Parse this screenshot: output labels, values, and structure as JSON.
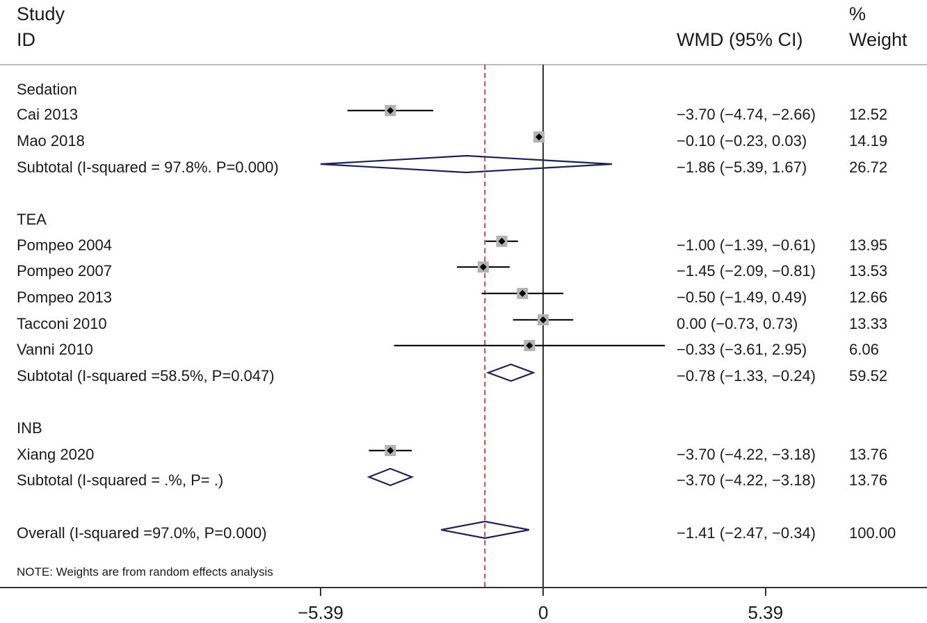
{
  "header": {
    "study_line1": "Study",
    "study_line2": "ID",
    "effect": "WMD (95% CI)",
    "weight_line1": "%",
    "weight_line2": "Weight"
  },
  "note": "NOTE: Weights are from random effects analysis",
  "chart_data": {
    "type": "forest",
    "effect_measure": "WMD (95% CI)",
    "x_ticks": [
      {
        "value": -5.39,
        "label": "−5.39"
      },
      {
        "value": 0,
        "label": "0"
      },
      {
        "value": 5.39,
        "label": "5.39"
      }
    ],
    "xlim": [
      -5.39,
      5.39
    ],
    "null_line": 0,
    "overall_line": -1.41,
    "rows": [
      {
        "kind": "group",
        "label": "Sedation"
      },
      {
        "kind": "study",
        "label": "Cai 2013",
        "est": -3.7,
        "lo": -4.74,
        "hi": -2.66,
        "ci_text": "−3.70 (−4.74, −2.66)",
        "weight": "12.52"
      },
      {
        "kind": "study",
        "label": "Mao 2018",
        "est": -0.1,
        "lo": -0.23,
        "hi": 0.03,
        "ci_text": "−0.10 (−0.23, 0.03)",
        "weight": "14.19"
      },
      {
        "kind": "subtotal",
        "label": "Subtotal (I-squared = 97.8%. P=0.000)",
        "est": -1.86,
        "lo": -5.39,
        "hi": 1.67,
        "ci_text": "−1.86 (−5.39, 1.67)",
        "weight": "26.72"
      },
      {
        "kind": "group",
        "label": "TEA"
      },
      {
        "kind": "study",
        "label": "Pompeo 2004",
        "est": -1.0,
        "lo": -1.39,
        "hi": -0.61,
        "ci_text": "−1.00 (−1.39, −0.61)",
        "weight": "13.95"
      },
      {
        "kind": "study",
        "label": "Pompeo 2007",
        "est": -1.45,
        "lo": -2.09,
        "hi": -0.81,
        "ci_text": "−1.45 (−2.09, −0.81)",
        "weight": "13.53"
      },
      {
        "kind": "study",
        "label": "Pompeo 2013",
        "est": -0.5,
        "lo": -1.49,
        "hi": 0.49,
        "ci_text": "−0.50 (−1.49, 0.49)",
        "weight": "12.66"
      },
      {
        "kind": "study",
        "label": "Tacconi 2010",
        "est": 0.0,
        "lo": -0.73,
        "hi": 0.73,
        "ci_text": "0.00 (−0.73, 0.73)",
        "weight": "13.33"
      },
      {
        "kind": "study",
        "label": "Vanni 2010",
        "est": -0.33,
        "lo": -3.61,
        "hi": 2.95,
        "ci_text": "−0.33 (−3.61, 2.95)",
        "weight": "6.06"
      },
      {
        "kind": "subtotal",
        "label": "Subtotal (I-squared =58.5%, P=0.047)",
        "est": -0.78,
        "lo": -1.33,
        "hi": -0.24,
        "ci_text": "−0.78 (−1.33, −0.24)",
        "weight": "59.52"
      },
      {
        "kind": "group",
        "label": "INB"
      },
      {
        "kind": "study",
        "label": "Xiang 2020",
        "est": -3.7,
        "lo": -4.22,
        "hi": -3.18,
        "ci_text": "−3.70 (−4.22, −3.18)",
        "weight": "13.76"
      },
      {
        "kind": "subtotal",
        "label": "Subtotal (I-squared = .%, P= .)",
        "est": -3.7,
        "lo": -4.22,
        "hi": -3.18,
        "ci_text": "−3.70 (−4.22, −3.18)",
        "weight": "13.76"
      },
      {
        "kind": "overall",
        "label": "Overall (I-squared =97.0%, P=0.000)",
        "est": -1.41,
        "lo": -2.47,
        "hi": -0.34,
        "ci_text": "−1.41 (−2.47, −0.34)",
        "weight": "100.00"
      }
    ]
  },
  "colors": {
    "text": "#1a1a1a",
    "square": "#b3b3b3",
    "diamond": "#1c2354",
    "overall_line": "#a02828",
    "axis": "#333333",
    "rule": "#bdbdbd"
  }
}
